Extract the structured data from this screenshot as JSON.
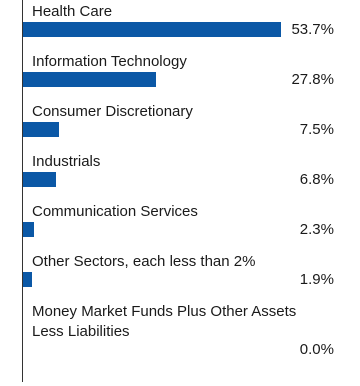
{
  "chart_data": {
    "type": "bar",
    "orientation": "horizontal",
    "categories": [
      "Health Care",
      "Information Technology",
      "Consumer Discretionary",
      "Industrials",
      "Communication Services",
      "Other Sectors, each less than 2%",
      "Money Market Funds Plus Other Assets Less Liabilities"
    ],
    "values": [
      53.7,
      27.8,
      7.5,
      6.8,
      2.3,
      1.9,
      0.0
    ],
    "value_labels": [
      "53.7%",
      "27.8%",
      "7.5%",
      "6.8%",
      "2.3%",
      "1.9%",
      "0.0%"
    ],
    "color": "#0b58a6"
  }
}
